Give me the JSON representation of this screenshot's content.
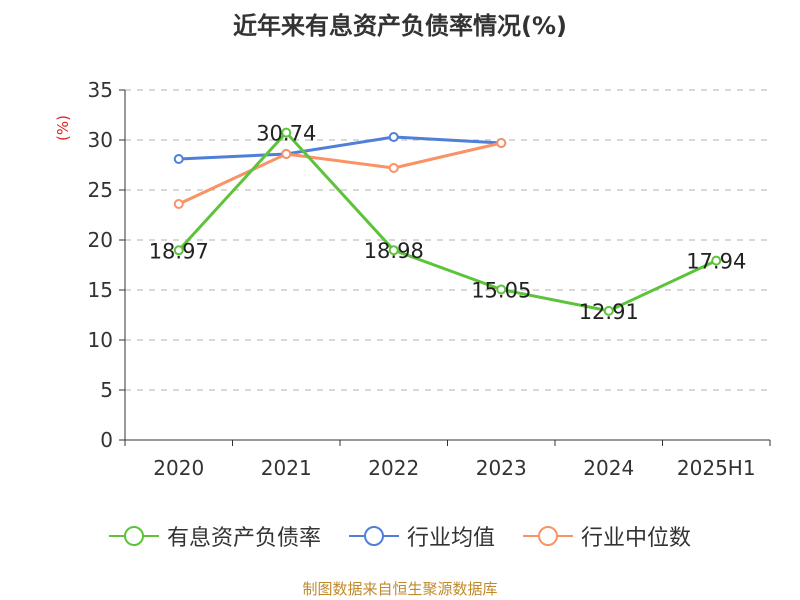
{
  "title": "近年来有息资产负债率情况(%)",
  "source": "制图数据来自恒生聚源数据库",
  "colors": {
    "series1": "#5cc33a",
    "series2": "#4f7fd8",
    "series3": "#f99264",
    "ylabel": "#e02020"
  },
  "chart_data": {
    "type": "line",
    "title": "近年来有息资产负债率情况(%)",
    "ylabel": "(%)",
    "xlabel": "",
    "ylim": [
      0,
      35
    ],
    "yticks": [
      0,
      5,
      10,
      15,
      20,
      25,
      30,
      35
    ],
    "categories": [
      "2020",
      "2021",
      "2022",
      "2023",
      "2024",
      "2025H1"
    ],
    "grid": true,
    "legend_position": "bottom",
    "series": [
      {
        "name": "有息资产负债率",
        "values": [
          18.97,
          30.74,
          18.98,
          15.05,
          12.91,
          17.94
        ],
        "labels": [
          "18.97",
          "30.74",
          "18.98",
          "15.05",
          "12.91",
          "17.94"
        ]
      },
      {
        "name": "行业均值",
        "values": [
          28.1,
          28.6,
          30.3,
          29.7,
          null,
          null
        ]
      },
      {
        "name": "行业中位数",
        "values": [
          23.6,
          28.6,
          27.2,
          29.7,
          null,
          null
        ]
      }
    ]
  }
}
